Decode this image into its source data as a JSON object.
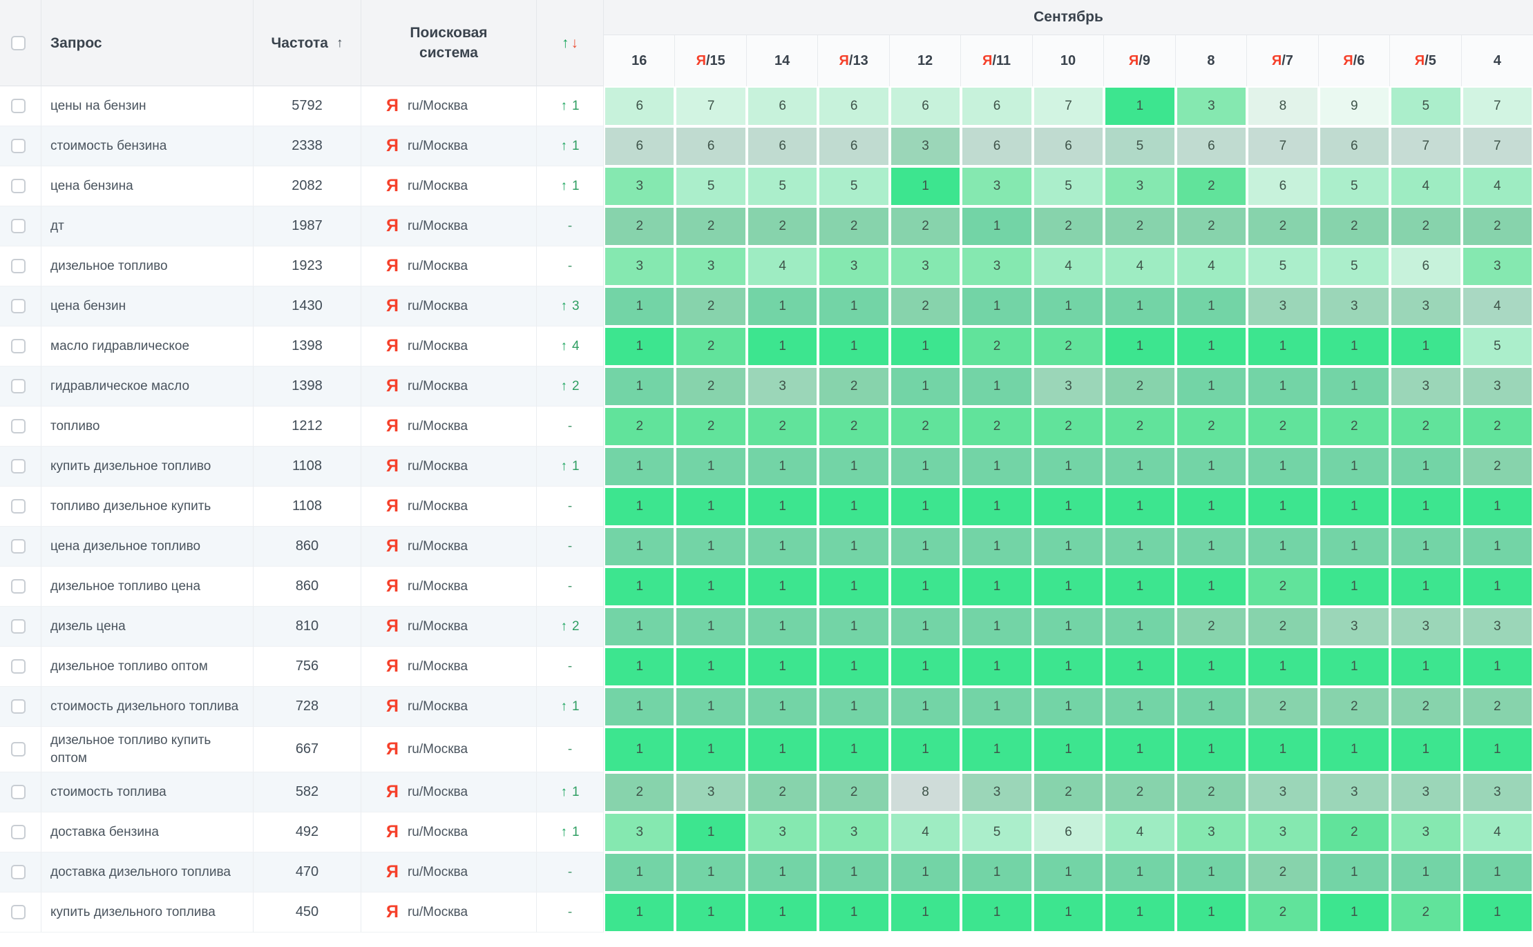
{
  "table": {
    "header": {
      "query_label": "Запрос",
      "frequency_label": "Частота",
      "frequency_sort_icon": "↑",
      "search_engine_label": "Поисковая система",
      "change_up_icon": "↑",
      "change_down_icon": "↓",
      "month_label": "Сентябрь",
      "dates": [
        {
          "ya": false,
          "day": "16"
        },
        {
          "ya": true,
          "day": "15"
        },
        {
          "ya": false,
          "day": "14"
        },
        {
          "ya": true,
          "day": "13"
        },
        {
          "ya": false,
          "day": "12"
        },
        {
          "ya": true,
          "day": "11"
        },
        {
          "ya": false,
          "day": "10"
        },
        {
          "ya": true,
          "day": "9"
        },
        {
          "ya": false,
          "day": "8"
        },
        {
          "ya": true,
          "day": "7"
        },
        {
          "ya": true,
          "day": "6"
        },
        {
          "ya": true,
          "day": "5"
        },
        {
          "ya": false,
          "day": "4"
        }
      ]
    },
    "search_engine": {
      "icon": "Я",
      "region": "ru/Москва"
    },
    "rows": [
      {
        "query": "цены на бензин",
        "frequency": "5792",
        "change_dir": "up",
        "change_value": "1",
        "positions": [
          6,
          7,
          6,
          6,
          6,
          6,
          7,
          1,
          3,
          8,
          9,
          5,
          7
        ]
      },
      {
        "query": "стоимость бензина",
        "frequency": "2338",
        "change_dir": "up",
        "change_value": "1",
        "positions": [
          6,
          6,
          6,
          6,
          3,
          6,
          6,
          5,
          6,
          7,
          6,
          7,
          7
        ]
      },
      {
        "query": "цена бензина",
        "frequency": "2082",
        "change_dir": "up",
        "change_value": "1",
        "positions": [
          3,
          5,
          5,
          5,
          1,
          3,
          5,
          3,
          2,
          6,
          5,
          4,
          4
        ]
      },
      {
        "query": "дт",
        "frequency": "1987",
        "change_dir": "none",
        "change_value": "-",
        "positions": [
          2,
          2,
          2,
          2,
          2,
          1,
          2,
          2,
          2,
          2,
          2,
          2,
          2
        ]
      },
      {
        "query": "дизельное топливо",
        "frequency": "1923",
        "change_dir": "none",
        "change_value": "-",
        "positions": [
          3,
          3,
          4,
          3,
          3,
          3,
          4,
          4,
          4,
          5,
          5,
          6,
          3
        ]
      },
      {
        "query": "цена бензин",
        "frequency": "1430",
        "change_dir": "up",
        "change_value": "3",
        "positions": [
          1,
          2,
          1,
          1,
          2,
          1,
          1,
          1,
          1,
          3,
          3,
          3,
          4
        ]
      },
      {
        "query": "масло гидравлическое",
        "frequency": "1398",
        "change_dir": "up",
        "change_value": "4",
        "positions": [
          1,
          2,
          1,
          1,
          1,
          2,
          2,
          1,
          1,
          1,
          1,
          1,
          5
        ]
      },
      {
        "query": "гидравлическое масло",
        "frequency": "1398",
        "change_dir": "up",
        "change_value": "2",
        "positions": [
          1,
          2,
          3,
          2,
          1,
          1,
          3,
          2,
          1,
          1,
          1,
          3,
          3
        ]
      },
      {
        "query": "топливо",
        "frequency": "1212",
        "change_dir": "none",
        "change_value": "-",
        "positions": [
          2,
          2,
          2,
          2,
          2,
          2,
          2,
          2,
          2,
          2,
          2,
          2,
          2
        ]
      },
      {
        "query": "купить дизельное топливо",
        "frequency": "1108",
        "change_dir": "up",
        "change_value": "1",
        "positions": [
          1,
          1,
          1,
          1,
          1,
          1,
          1,
          1,
          1,
          1,
          1,
          1,
          2
        ]
      },
      {
        "query": "топливо дизельное купить",
        "frequency": "1108",
        "change_dir": "none",
        "change_value": "-",
        "positions": [
          1,
          1,
          1,
          1,
          1,
          1,
          1,
          1,
          1,
          1,
          1,
          1,
          1
        ]
      },
      {
        "query": "цена дизельное топливо",
        "frequency": "860",
        "change_dir": "none",
        "change_value": "-",
        "positions": [
          1,
          1,
          1,
          1,
          1,
          1,
          1,
          1,
          1,
          1,
          1,
          1,
          1
        ]
      },
      {
        "query": "дизельное топливо цена",
        "frequency": "860",
        "change_dir": "none",
        "change_value": "-",
        "positions": [
          1,
          1,
          1,
          1,
          1,
          1,
          1,
          1,
          1,
          2,
          1,
          1,
          1
        ]
      },
      {
        "query": "дизель цена",
        "frequency": "810",
        "change_dir": "up",
        "change_value": "2",
        "positions": [
          1,
          1,
          1,
          1,
          1,
          1,
          1,
          1,
          2,
          2,
          3,
          3,
          3
        ]
      },
      {
        "query": "дизельное топливо оптом",
        "frequency": "756",
        "change_dir": "none",
        "change_value": "-",
        "positions": [
          1,
          1,
          1,
          1,
          1,
          1,
          1,
          1,
          1,
          1,
          1,
          1,
          1
        ]
      },
      {
        "query": "стоимость дизельного топлива",
        "frequency": "728",
        "change_dir": "up",
        "change_value": "1",
        "positions": [
          1,
          1,
          1,
          1,
          1,
          1,
          1,
          1,
          1,
          2,
          2,
          2,
          2
        ]
      },
      {
        "query": "дизельное топливо купить оптом",
        "frequency": "667",
        "change_dir": "none",
        "change_value": "-",
        "positions": [
          1,
          1,
          1,
          1,
          1,
          1,
          1,
          1,
          1,
          1,
          1,
          1,
          1
        ]
      },
      {
        "query": "стоимость топлива",
        "frequency": "582",
        "change_dir": "up",
        "change_value": "1",
        "positions": [
          2,
          3,
          2,
          2,
          8,
          3,
          2,
          2,
          2,
          3,
          3,
          3,
          3
        ]
      },
      {
        "query": "доставка бензина",
        "frequency": "492",
        "change_dir": "up",
        "change_value": "1",
        "positions": [
          3,
          1,
          3,
          3,
          4,
          5,
          6,
          4,
          3,
          3,
          2,
          3,
          4
        ]
      },
      {
        "query": "доставка дизельного топлива",
        "frequency": "470",
        "change_dir": "none",
        "change_value": "-",
        "positions": [
          1,
          1,
          1,
          1,
          1,
          1,
          1,
          1,
          1,
          2,
          1,
          1,
          1
        ]
      },
      {
        "query": "купить дизельного топлива",
        "frequency": "450",
        "change_dir": "none",
        "change_value": "-",
        "positions": [
          1,
          1,
          1,
          1,
          1,
          1,
          1,
          1,
          1,
          2,
          1,
          2,
          1
        ]
      }
    ]
  },
  "colors": {
    "yandex_red": "#f5402a",
    "up_green": "#15a259",
    "down_red": "#ea4f35",
    "heat_text": "#3e5349",
    "even_row_bg": "#f3f7fa",
    "header_bg": "#f3f4f6",
    "heat_palette": {
      "1": "#3de58f",
      "2": "#61e39b",
      "3": "#85e8b0",
      "4": "#9eecc2",
      "5": "#abeecb",
      "6": "#c7f2db",
      "7": "#d2f4e2",
      "8": "#e2f3ea",
      "9": "#eaf9f1"
    },
    "muted_blend": "#c5ccd1"
  }
}
